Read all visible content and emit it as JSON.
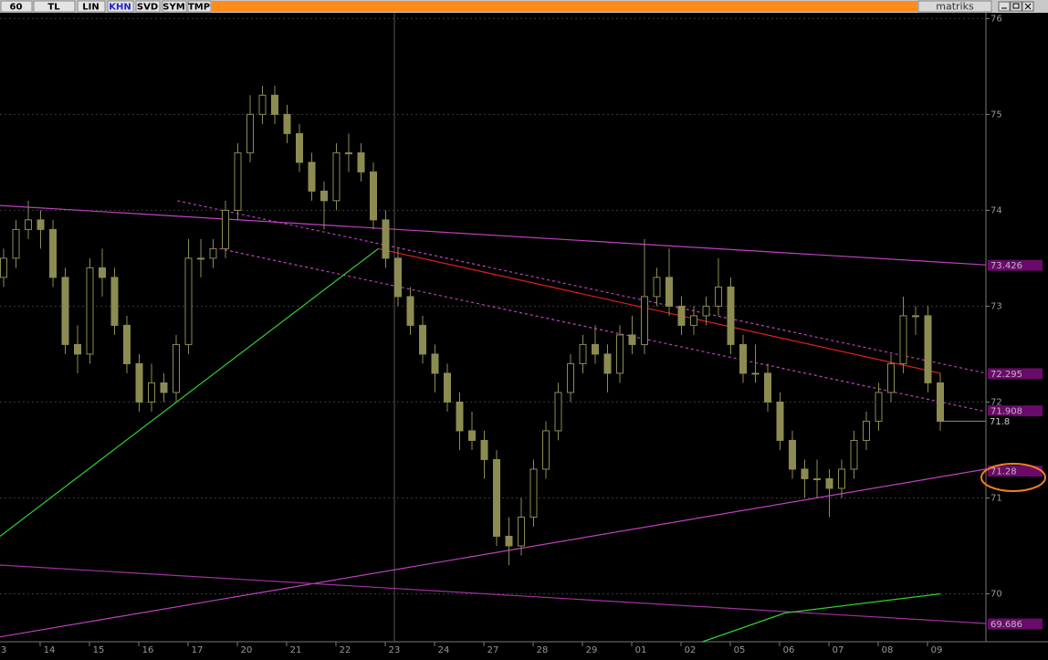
{
  "toolbar": {
    "buttons": [
      "60",
      "TL",
      "LIN",
      "KHN",
      "SVD",
      "SYM",
      "TMP"
    ],
    "brand": "matriks"
  },
  "chart_data": {
    "type": "candlestick",
    "categories": [
      "3",
      null,
      null,
      null,
      "14",
      null,
      null,
      null,
      "15",
      null,
      null,
      null,
      "16",
      null,
      null,
      null,
      "17",
      null,
      null,
      null,
      "20",
      null,
      null,
      null,
      "21",
      null,
      null,
      null,
      "22",
      null,
      null,
      null,
      "23",
      null,
      null,
      null,
      "24",
      null,
      null,
      null,
      "27",
      null,
      null,
      null,
      "28",
      null,
      null,
      null,
      "29",
      null,
      null,
      null,
      "01",
      null,
      null,
      null,
      "02",
      null,
      null,
      null,
      "05",
      null,
      null,
      null,
      "06",
      null,
      null,
      null,
      "07",
      null,
      null,
      null,
      "08",
      null,
      null,
      null,
      "09"
    ],
    "open": [
      73.3,
      73.5,
      73.8,
      73.9,
      73.8,
      73.3,
      72.6,
      72.5,
      73.4,
      73.3,
      72.8,
      72.4,
      72.0,
      72.2,
      72.1,
      72.6,
      73.5,
      73.5,
      73.6,
      74.0,
      74.6,
      75.0,
      75.2,
      75.0,
      74.8,
      74.5,
      74.2,
      74.1,
      74.6,
      74.6,
      74.4,
      73.9,
      73.5,
      73.1,
      72.8,
      72.5,
      72.3,
      72.0,
      71.7,
      71.6,
      71.4,
      70.6,
      70.5,
      70.8,
      71.3,
      71.7,
      72.1,
      72.4,
      72.6,
      72.5,
      72.3,
      72.7,
      72.6,
      73.1,
      73.3,
      73.0,
      72.8,
      72.9,
      73.0,
      73.2,
      72.6,
      72.3,
      72.3,
      72.0,
      71.6,
      71.3,
      71.2,
      71.2,
      71.1,
      71.3,
      71.6,
      71.8,
      72.1,
      72.4,
      72.9,
      72.9,
      72.2
    ],
    "high": [
      73.6,
      73.9,
      74.1,
      74.0,
      73.9,
      73.4,
      72.8,
      73.5,
      73.6,
      73.4,
      72.9,
      72.5,
      72.4,
      72.3,
      72.7,
      73.7,
      73.7,
      73.7,
      74.1,
      74.7,
      75.2,
      75.3,
      75.3,
      75.1,
      74.9,
      74.6,
      74.3,
      74.7,
      74.8,
      74.7,
      74.5,
      74.0,
      73.6,
      73.2,
      72.9,
      72.6,
      72.4,
      72.1,
      71.9,
      71.7,
      71.5,
      70.8,
      71.0,
      71.4,
      71.8,
      72.2,
      72.5,
      72.7,
      72.8,
      72.6,
      72.8,
      72.9,
      73.7,
      73.4,
      73.6,
      73.1,
      73.0,
      73.1,
      73.5,
      73.3,
      72.7,
      72.6,
      72.4,
      72.1,
      71.7,
      71.4,
      71.4,
      71.3,
      71.4,
      71.7,
      71.9,
      72.2,
      72.5,
      73.1,
      73.0,
      73.0,
      72.3
    ],
    "low": [
      73.2,
      73.4,
      73.7,
      73.6,
      73.2,
      72.5,
      72.3,
      72.4,
      73.1,
      72.7,
      72.3,
      71.9,
      71.9,
      72.0,
      72.0,
      72.5,
      73.3,
      73.4,
      73.5,
      73.9,
      74.5,
      74.9,
      74.9,
      74.7,
      74.4,
      74.1,
      73.8,
      74.0,
      74.4,
      74.3,
      73.8,
      73.4,
      73.0,
      72.7,
      72.4,
      72.1,
      71.9,
      71.5,
      71.5,
      71.2,
      70.5,
      70.3,
      70.4,
      70.7,
      71.2,
      71.6,
      72.0,
      72.3,
      72.4,
      72.1,
      72.2,
      72.5,
      72.5,
      73.0,
      72.9,
      72.7,
      72.7,
      72.8,
      72.9,
      72.5,
      72.2,
      72.2,
      71.9,
      71.5,
      71.2,
      71.0,
      71.0,
      70.8,
      71.0,
      71.2,
      71.5,
      71.7,
      72.0,
      72.3,
      72.7,
      72.1,
      71.7
    ],
    "close": [
      73.5,
      73.8,
      73.9,
      73.8,
      73.3,
      72.6,
      72.5,
      73.4,
      73.3,
      72.8,
      72.4,
      72.0,
      72.2,
      72.1,
      72.6,
      73.5,
      73.5,
      73.6,
      74.0,
      74.6,
      75.0,
      75.2,
      75.0,
      74.8,
      74.5,
      74.2,
      74.1,
      74.6,
      74.6,
      74.4,
      73.9,
      73.5,
      73.1,
      72.8,
      72.5,
      72.3,
      72.0,
      71.7,
      71.6,
      71.4,
      70.6,
      70.5,
      70.8,
      71.3,
      71.7,
      72.1,
      72.4,
      72.6,
      72.5,
      72.3,
      72.7,
      72.6,
      73.1,
      73.3,
      73.0,
      72.8,
      72.9,
      73.0,
      73.2,
      72.6,
      72.3,
      72.3,
      72.0,
      71.6,
      71.3,
      71.2,
      71.2,
      71.1,
      71.3,
      71.6,
      71.8,
      72.1,
      72.4,
      72.9,
      72.9,
      72.2,
      71.8
    ],
    "color": "#8c8c52",
    "ylim": [
      69.5,
      76.06
    ],
    "yticks": [
      70,
      71,
      72,
      73,
      74,
      75,
      76
    ],
    "grid": true,
    "lines": [
      {
        "color": "#c040c0",
        "dash": false,
        "x": [
          -0.3,
          79.7
        ],
        "y": [
          74.05,
          73.43
        ]
      },
      {
        "color": "#c040c0",
        "dash": true,
        "x": [
          14.1,
          79.7
        ],
        "y": [
          74.1,
          72.3
        ]
      },
      {
        "color": "#c040c0",
        "dash": true,
        "x": [
          17.5,
          79.7
        ],
        "y": [
          73.6,
          71.9
        ]
      },
      {
        "color": "#e02020",
        "dash": false,
        "x": [
          30.4,
          76.0
        ],
        "y": [
          73.6,
          72.3
        ]
      },
      {
        "color": "#30d030",
        "dash": false,
        "x": [
          -0.3,
          30.4
        ],
        "y": [
          70.6,
          73.6
        ]
      },
      {
        "color": "#c040c0",
        "dash": false,
        "x": [
          -0.3,
          79.7
        ],
        "y": [
          69.55,
          71.3
        ]
      },
      {
        "color": "#a030a0",
        "dash": false,
        "x": [
          -0.3,
          79.7
        ],
        "y": [
          70.3,
          69.69
        ]
      },
      {
        "color": "#30d030",
        "dash": false,
        "x": [
          56.7,
          63.4,
          76.0
        ],
        "y": [
          69.5,
          69.8,
          70.0
        ]
      }
    ],
    "line_tags": [
      73.426,
      72.295,
      71.908,
      71.28,
      69.686
    ],
    "last_price": 71.8
  }
}
